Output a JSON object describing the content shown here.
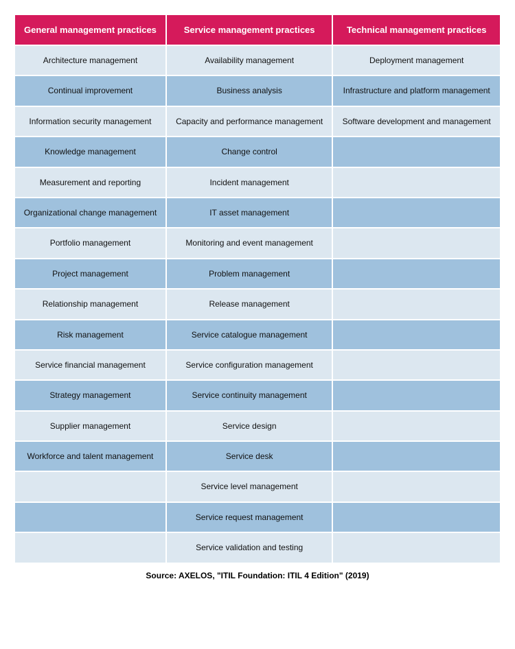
{
  "table": {
    "type": "table",
    "header_bg": "#d51a5b",
    "header_fg": "#ffffff",
    "row_even_bg": "#dce7f0",
    "row_odd_bg": "#9fc1dd",
    "cell_fg": "#111111",
    "header_fontsize": 13,
    "cell_fontsize": 12,
    "columns": [
      "General management practices",
      "Service management practices",
      "Technical management practices"
    ],
    "rows": [
      [
        "Architecture management",
        "Availability management",
        "Deployment management"
      ],
      [
        "Continual improvement",
        "Business analysis",
        "Infrastructure and platform management"
      ],
      [
        "Information security management",
        "Capacity and performance management",
        "Software development and management"
      ],
      [
        "Knowledge management",
        "Change control",
        ""
      ],
      [
        "Measurement and reporting",
        "Incident management",
        ""
      ],
      [
        "Organizational change management",
        "IT asset management",
        ""
      ],
      [
        "Portfolio management",
        "Monitoring and event management",
        ""
      ],
      [
        "Project management",
        "Problem management",
        ""
      ],
      [
        "Relationship management",
        "Release management",
        ""
      ],
      [
        "Risk management",
        "Service catalogue management",
        ""
      ],
      [
        "Service financial management",
        "Service configuration management",
        ""
      ],
      [
        "Strategy management",
        "Service continuity management",
        ""
      ],
      [
        "Supplier management",
        "Service design",
        ""
      ],
      [
        "Workforce and talent management",
        "Service desk",
        ""
      ],
      [
        "",
        "Service level management",
        ""
      ],
      [
        "",
        "Service request management",
        ""
      ],
      [
        "",
        "Service validation and testing",
        ""
      ]
    ]
  },
  "source_text": "Source: AXELOS, \"ITIL Foundation: ITIL 4 Edition\" (2019)"
}
